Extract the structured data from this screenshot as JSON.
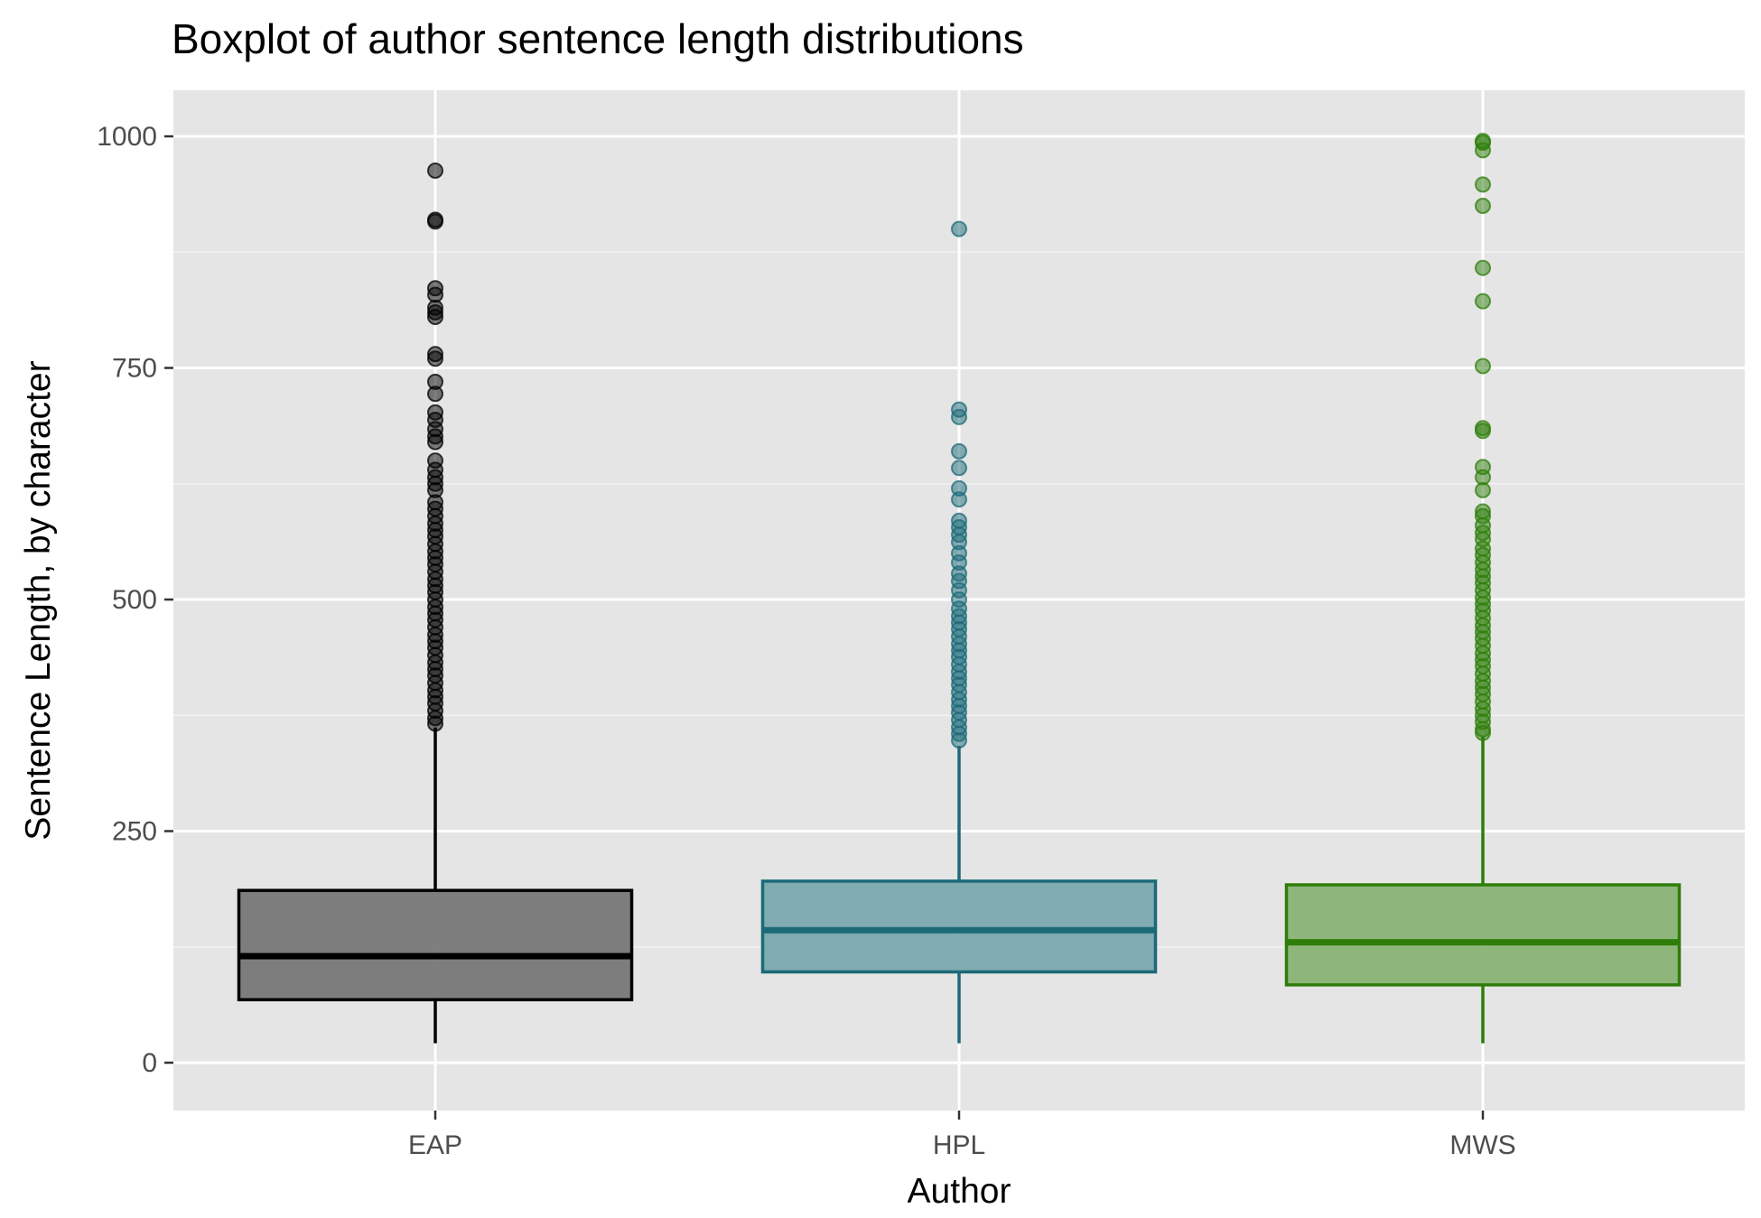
{
  "chart_data": {
    "type": "boxplot",
    "title": "Boxplot of author sentence length distributions",
    "xlabel": "Author",
    "ylabel": "Sentence Length, by character",
    "ylim": [
      -50,
      1050
    ],
    "yticks": [
      0,
      250,
      500,
      750,
      1000
    ],
    "grid": true,
    "legend": "none",
    "categories": [
      "EAP",
      "HPL",
      "MWS"
    ],
    "series": [
      {
        "category": "EAP",
        "color": "#000000",
        "fill": "#777777",
        "whisker_low": 21,
        "q1": 68,
        "median": 115,
        "q3": 186,
        "whisker_high": 362,
        "outliers": [
          963,
          910,
          908,
          836,
          829,
          815,
          810,
          805,
          765,
          760,
          735,
          722,
          702,
          694,
          684,
          676,
          670,
          650,
          640,
          632,
          625,
          618,
          605,
          598,
          590,
          582,
          575,
          568,
          560,
          552,
          545,
          538,
          530,
          522,
          515,
          508,
          500,
          492,
          485,
          478,
          470,
          462,
          455,
          448,
          440,
          432,
          425,
          418,
          410,
          402,
          395,
          388,
          380,
          372,
          366
        ]
      },
      {
        "category": "HPL",
        "color": "#1b6a78",
        "fill": "#7aa8ae",
        "whisker_low": 21,
        "q1": 98,
        "median": 143,
        "q3": 196,
        "whisker_high": 342,
        "outliers": [
          900,
          705,
          697,
          660,
          642,
          620,
          608,
          585,
          578,
          570,
          562,
          550,
          540,
          528,
          520,
          510,
          500,
          490,
          482,
          475,
          468,
          460,
          452,
          445,
          438,
          430,
          422,
          415,
          408,
          400,
          392,
          385,
          378,
          370,
          362,
          355,
          348
        ]
      },
      {
        "category": "MWS",
        "color": "#2e7d0a",
        "fill": "#89b374",
        "whisker_low": 21,
        "q1": 84,
        "median": 130,
        "q3": 192,
        "whisker_high": 352,
        "outliers": [
          995,
          993,
          985,
          948,
          925,
          858,
          822,
          752,
          685,
          682,
          643,
          632,
          618,
          595,
          590,
          580,
          572,
          565,
          555,
          548,
          540,
          532,
          525,
          518,
          510,
          502,
          495,
          488,
          480,
          472,
          465,
          458,
          450,
          442,
          435,
          428,
          420,
          412,
          405,
          398,
          390,
          382,
          375,
          368,
          360,
          356
        ]
      }
    ]
  }
}
